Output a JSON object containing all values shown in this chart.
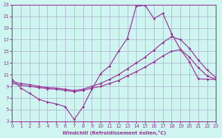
{
  "xlabel": "Windchill (Refroidissement éolien,°C)",
  "bg_color": "#cef5ef",
  "grid_color": "#aaaacc",
  "line_color": "#993399",
  "xlim": [
    0,
    23
  ],
  "ylim": [
    3,
    23
  ],
  "xticks": [
    0,
    1,
    2,
    3,
    4,
    5,
    6,
    7,
    8,
    9,
    10,
    11,
    12,
    13,
    14,
    15,
    16,
    17,
    18,
    19,
    20,
    21,
    22,
    23
  ],
  "yticks": [
    3,
    5,
    7,
    9,
    11,
    13,
    15,
    17,
    19,
    21,
    23
  ],
  "line1_x": [
    0,
    1,
    2,
    3,
    4,
    5,
    6,
    7,
    8,
    9,
    10,
    11,
    12,
    13,
    14,
    15,
    16,
    17,
    18,
    19,
    20,
    21,
    22,
    23
  ],
  "line1_y": [
    10.2,
    8.7,
    7.8,
    6.8,
    6.3,
    6.0,
    5.5,
    3.3,
    5.5,
    8.5,
    11.2,
    12.5,
    15.0,
    17.2,
    22.7,
    22.9,
    20.6,
    21.5,
    18.0,
    15.3,
    13.2,
    10.3,
    10.2,
    10.2
  ],
  "line2_x": [
    0,
    1,
    2,
    3,
    4,
    5,
    6,
    7,
    8,
    9,
    10,
    11,
    12,
    13,
    14,
    15,
    16,
    17,
    18,
    19,
    20,
    21,
    22,
    23
  ],
  "line2_y": [
    9.8,
    9.5,
    9.3,
    9.0,
    8.8,
    8.7,
    8.5,
    8.3,
    8.5,
    9.0,
    9.5,
    10.2,
    11.0,
    12.0,
    13.0,
    14.0,
    15.2,
    16.5,
    17.5,
    17.0,
    15.5,
    13.5,
    11.8,
    10.5
  ],
  "line3_x": [
    0,
    1,
    2,
    3,
    4,
    5,
    6,
    7,
    8,
    9,
    10,
    11,
    12,
    13,
    14,
    15,
    16,
    17,
    18,
    19,
    20,
    21,
    22,
    23
  ],
  "line3_y": [
    9.5,
    9.2,
    9.0,
    8.8,
    8.6,
    8.5,
    8.3,
    8.1,
    8.3,
    8.7,
    9.0,
    9.5,
    10.0,
    10.8,
    11.5,
    12.3,
    13.2,
    14.2,
    15.0,
    15.3,
    14.0,
    12.2,
    10.8,
    10.2
  ]
}
